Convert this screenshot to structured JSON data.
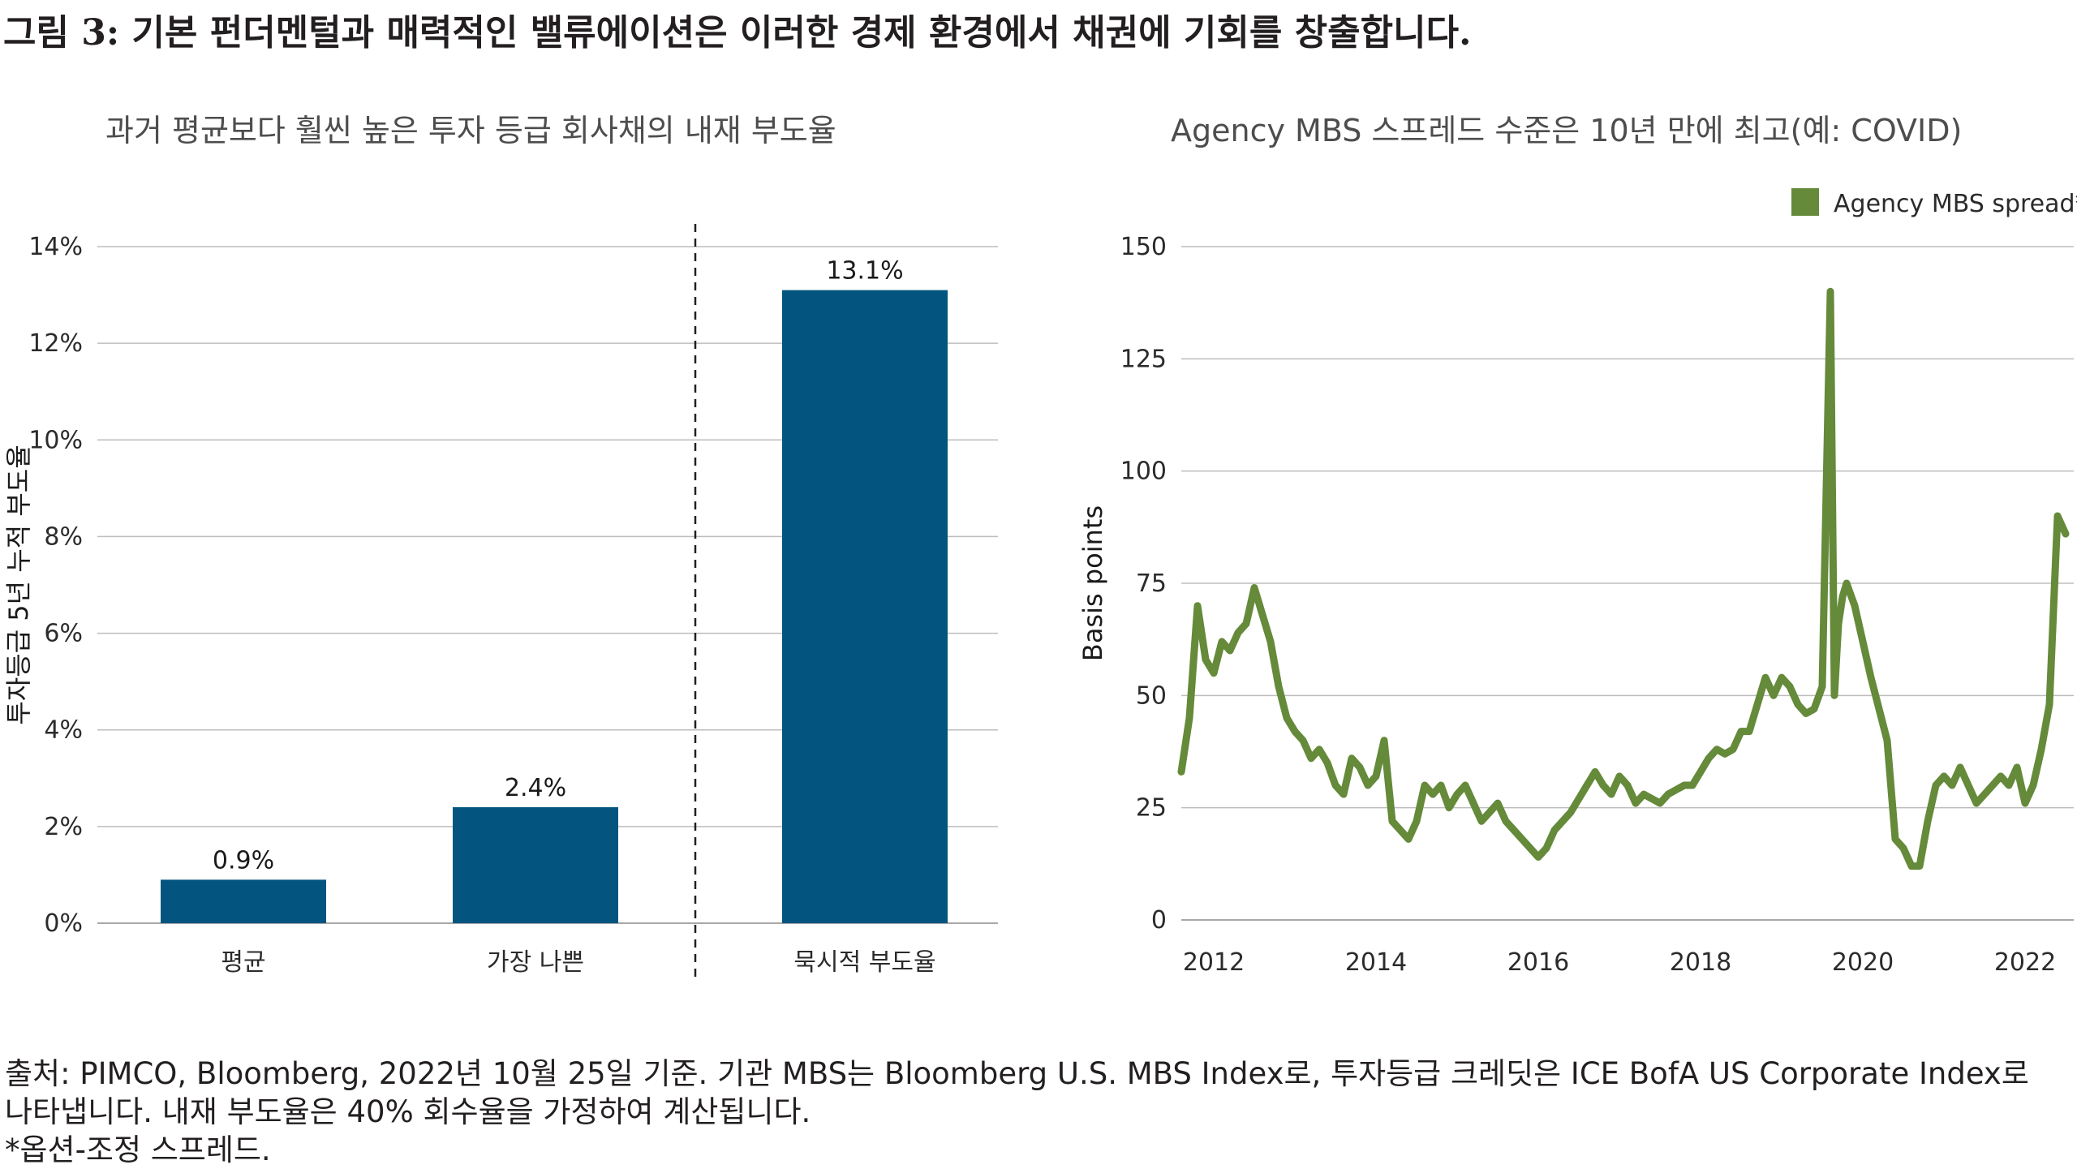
{
  "figure_title": "그림 3: 기본 펀더멘털과 매력적인 밸류에이션은 이러한 경제 환경에서 채권에 기회를 창출합니다.",
  "colors": {
    "bar": "#03557f",
    "line": "#648a3a",
    "grid": "#bdbdbd",
    "text": "#231f20"
  },
  "chart_data": [
    {
      "type": "bar",
      "title": "과거 평균보다 훨씬 높은 투자 등급 회사채의 내재 부도율",
      "ylabel": "투자등급 5년 누적 부도율",
      "xlabel": "",
      "categories": [
        "평균",
        "가장 나쁜",
        "묵시적 부도율"
      ],
      "values": [
        0.9,
        2.4,
        13.1
      ],
      "value_labels": [
        "0.9%",
        "2.4%",
        "13.1%"
      ],
      "ylim": [
        0,
        14
      ],
      "yticks": [
        0,
        2,
        4,
        6,
        8,
        10,
        12,
        14
      ],
      "ytick_labels": [
        "0%",
        "2%",
        "4%",
        "6%",
        "8%",
        "10%",
        "12%",
        "14%"
      ],
      "divider_after_index": 1,
      "grid": true
    },
    {
      "type": "line",
      "title": "Agency MBS 스프레드 수준은 10년 만에 최고(예: COVID)",
      "xlabel": "",
      "ylabel": "Basis points",
      "ylim": [
        0,
        150
      ],
      "yticks": [
        0,
        25,
        50,
        75,
        100,
        125,
        150
      ],
      "ytick_labels": [
        "0",
        "25",
        "50",
        "75",
        "100",
        "125",
        "150"
      ],
      "xlim": [
        2011.6,
        2022.6
      ],
      "xticks": [
        2012,
        2014,
        2016,
        2018,
        2020,
        2022
      ],
      "xtick_labels": [
        "2012",
        "2014",
        "2016",
        "2018",
        "2020",
        "2022"
      ],
      "legend": "top-right",
      "grid": true,
      "series": [
        {
          "name": "Agency MBS spread*",
          "x": [
            2011.6,
            2011.7,
            2011.8,
            2011.9,
            2012.0,
            2012.1,
            2012.2,
            2012.3,
            2012.4,
            2012.5,
            2012.6,
            2012.7,
            2012.8,
            2012.9,
            2013.0,
            2013.1,
            2013.2,
            2013.3,
            2013.4,
            2013.5,
            2013.6,
            2013.7,
            2013.8,
            2013.9,
            2014.0,
            2014.1,
            2014.2,
            2014.3,
            2014.4,
            2014.5,
            2014.6,
            2014.7,
            2014.8,
            2014.9,
            2015.0,
            2015.1,
            2015.2,
            2015.3,
            2015.4,
            2015.5,
            2015.6,
            2015.7,
            2015.8,
            2015.9,
            2016.0,
            2016.1,
            2016.2,
            2016.3,
            2016.4,
            2016.5,
            2016.6,
            2016.7,
            2016.8,
            2016.9,
            2017.0,
            2017.1,
            2017.2,
            2017.3,
            2017.4,
            2017.5,
            2017.6,
            2017.7,
            2017.8,
            2017.9,
            2018.0,
            2018.1,
            2018.2,
            2018.3,
            2018.4,
            2018.5,
            2018.6,
            2018.7,
            2018.8,
            2018.9,
            2019.0,
            2019.1,
            2019.2,
            2019.3,
            2019.4,
            2019.5,
            2019.6,
            2019.65,
            2019.7,
            2019.75,
            2019.8,
            2019.9,
            2020.0,
            2020.1,
            2020.2,
            2020.3,
            2020.4,
            2020.5,
            2020.6,
            2020.7,
            2020.8,
            2020.9,
            2021.0,
            2021.1,
            2021.2,
            2021.3,
            2021.4,
            2021.5,
            2021.6,
            2021.7,
            2021.8,
            2021.9,
            2022.0,
            2022.1,
            2022.2,
            2022.3,
            2022.4,
            2022.5
          ],
          "values": [
            33,
            45,
            70,
            58,
            55,
            62,
            60,
            64,
            66,
            74,
            68,
            62,
            52,
            45,
            42,
            40,
            36,
            38,
            35,
            30,
            28,
            36,
            34,
            30,
            32,
            40,
            22,
            20,
            18,
            22,
            30,
            28,
            30,
            25,
            28,
            30,
            26,
            22,
            24,
            26,
            22,
            20,
            18,
            16,
            14,
            16,
            20,
            22,
            24,
            27,
            30,
            33,
            30,
            28,
            32,
            30,
            26,
            28,
            27,
            26,
            28,
            29,
            30,
            30,
            33,
            36,
            38,
            37,
            38,
            42,
            42,
            48,
            54,
            50,
            54,
            52,
            48,
            46,
            47,
            52,
            140,
            50,
            66,
            72,
            75,
            70,
            62,
            54,
            47,
            40,
            18,
            16,
            12,
            12,
            22,
            30,
            32,
            30,
            34,
            30,
            26,
            28,
            30,
            32,
            30,
            34,
            26,
            30,
            38,
            48,
            90,
            86
          ]
        }
      ]
    }
  ],
  "footnote_lines": [
    "출처: PIMCO, Bloomberg, 2022년 10월 25일 기준. 기관 MBS는 Bloomberg U.S. MBS Index로, 투자등급 크레딧은 ICE BofA US Corporate Index로",
    "나타냅니다. 내재 부도율은 40% 회수율을 가정하여 계산됩니다.",
    "*옵션-조정 스프레드."
  ]
}
